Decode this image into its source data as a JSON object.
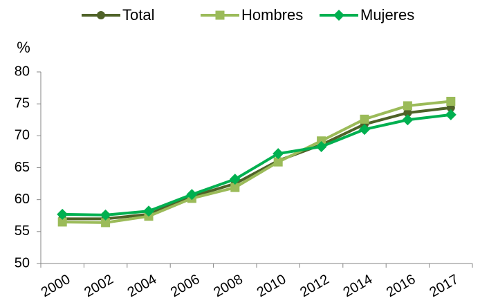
{
  "chart_data": {
    "type": "line",
    "ylabel": "%",
    "categories": [
      "2000",
      "2002",
      "2004",
      "2006",
      "2008",
      "2010",
      "2012",
      "2014",
      "2016",
      "2017"
    ],
    "series": [
      {
        "name": "Total",
        "color": "#4f6228",
        "marker": "circle",
        "values": [
          57.0,
          57.0,
          57.7,
          60.5,
          62.5,
          66.1,
          68.6,
          71.8,
          73.6,
          74.4
        ]
      },
      {
        "name": "Hombres",
        "color": "#9bbb59",
        "marker": "square",
        "values": [
          56.5,
          56.4,
          57.4,
          60.2,
          61.9,
          65.9,
          69.2,
          72.6,
          74.7,
          75.4
        ]
      },
      {
        "name": "Mujeres",
        "color": "#00b050",
        "marker": "diamond",
        "values": [
          57.7,
          57.6,
          58.2,
          60.8,
          63.2,
          67.2,
          68.3,
          71.0,
          72.5,
          73.3
        ]
      }
    ],
    "ylim": [
      50,
      80
    ],
    "yticks": [
      50,
      55,
      60,
      65,
      70,
      75,
      80
    ],
    "grid": false,
    "legend": "top"
  }
}
